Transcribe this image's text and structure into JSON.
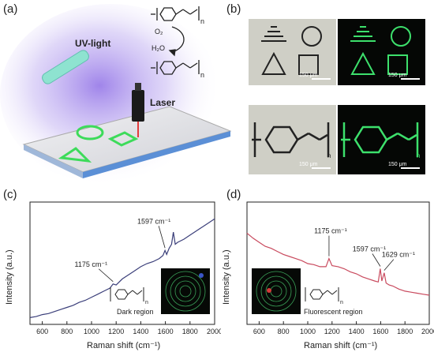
{
  "panels": {
    "a": {
      "label": "(a)",
      "uv_label": "UV-light",
      "laser_label": "Laser",
      "reagent_o2": "O₂",
      "reagent_h2o": "H₂O",
      "subscript_n": "n"
    },
    "b": {
      "label": "(b)",
      "scale_bars": [
        "150 μm",
        "150 μm",
        "150 μm",
        "150 μm"
      ],
      "subscript_n": "n"
    },
    "c": {
      "label": "(c)",
      "annotation_note": "Dark region"
    },
    "d": {
      "label": "(d)",
      "annotation_note": "Fluorescent region"
    }
  },
  "chart_data": [
    {
      "type": "line",
      "panel": "c",
      "xlabel": "Raman shift (cm⁻¹)",
      "ylabel": "Intensity (a.u.)",
      "xlim": [
        500,
        2000
      ],
      "xticks": [
        600,
        800,
        1000,
        1200,
        1400,
        1600,
        1800,
        2000
      ],
      "color": "#3b3f7a",
      "annotations": [
        {
          "text": "1597 cm⁻¹",
          "x": 1597
        },
        {
          "text": "1175 cm⁻¹",
          "x": 1175
        }
      ],
      "series": [
        {
          "x": [
            500,
            550,
            600,
            650,
            700,
            750,
            800,
            850,
            900,
            950,
            1000,
            1050,
            1100,
            1150,
            1175,
            1200,
            1250,
            1300,
            1350,
            1400,
            1450,
            1500,
            1550,
            1580,
            1597,
            1610,
            1630,
            1650,
            1665,
            1680,
            1700,
            1750,
            1800,
            1850,
            1900,
            1950,
            2000
          ],
          "y": [
            0.02,
            0.03,
            0.05,
            0.06,
            0.08,
            0.1,
            0.12,
            0.14,
            0.17,
            0.19,
            0.22,
            0.25,
            0.28,
            0.31,
            0.35,
            0.34,
            0.4,
            0.44,
            0.48,
            0.52,
            0.55,
            0.57,
            0.6,
            0.63,
            0.68,
            0.64,
            0.7,
            0.74,
            0.86,
            0.74,
            0.76,
            0.79,
            0.83,
            0.87,
            0.91,
            0.95,
            0.99
          ]
        }
      ]
    },
    {
      "type": "line",
      "panel": "d",
      "xlabel": "Raman shift (cm⁻¹)",
      "ylabel": "Intensity (a.u.)",
      "xlim": [
        500,
        2000
      ],
      "xticks": [
        600,
        800,
        1000,
        1200,
        1400,
        1600,
        1800,
        2000
      ],
      "color": "#c94a5e",
      "annotations": [
        {
          "text": "1175 cm⁻¹",
          "x": 1175
        },
        {
          "text": "1597 cm⁻¹",
          "x": 1597
        },
        {
          "text": "1629 cm⁻¹",
          "x": 1629
        }
      ],
      "series": [
        {
          "x": [
            500,
            550,
            600,
            650,
            700,
            750,
            800,
            850,
            900,
            950,
            1000,
            1050,
            1100,
            1150,
            1175,
            1200,
            1250,
            1300,
            1350,
            1400,
            1450,
            1500,
            1550,
            1580,
            1597,
            1610,
            1629,
            1645,
            1670,
            1700,
            1750,
            1800,
            1850,
            1900,
            1950,
            2000
          ],
          "y": [
            0.85,
            0.8,
            0.76,
            0.72,
            0.7,
            0.67,
            0.64,
            0.62,
            0.6,
            0.58,
            0.55,
            0.54,
            0.52,
            0.52,
            0.6,
            0.53,
            0.52,
            0.5,
            0.47,
            0.45,
            0.42,
            0.4,
            0.38,
            0.37,
            0.5,
            0.38,
            0.46,
            0.36,
            0.34,
            0.33,
            0.3,
            0.28,
            0.27,
            0.26,
            0.25,
            0.24
          ]
        }
      ]
    }
  ]
}
